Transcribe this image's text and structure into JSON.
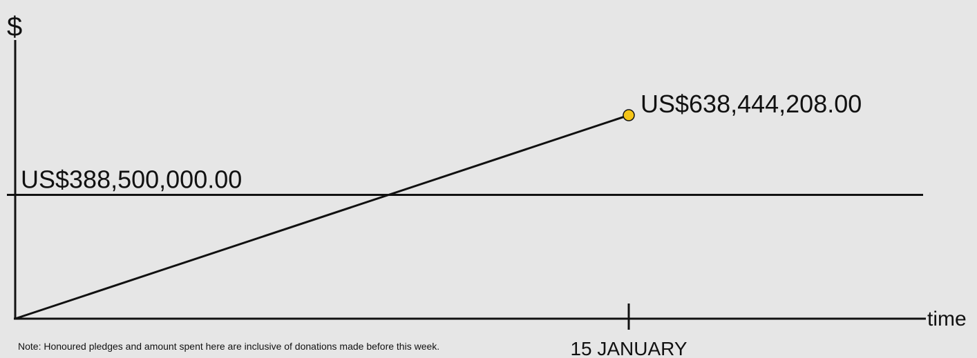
{
  "chart_data": {
    "type": "line",
    "ylabel": "$",
    "xlabel": "time",
    "x_ticks": [
      "15 JANUARY"
    ],
    "reference_line": {
      "value": 388500000,
      "label": "US$388,500,000.00"
    },
    "series": [
      {
        "points": [
          {
            "x": "start",
            "y": 0
          },
          {
            "x": "15 JANUARY",
            "y": 638444208
          }
        ],
        "end_label": "US$638,444,208.00",
        "marker_color": "#f5c518"
      }
    ],
    "ylim": [
      0,
      1000000000
    ],
    "grid": false
  },
  "note": "Note: Honoured pledges and amount spent here are inclusive of donations made before this week."
}
